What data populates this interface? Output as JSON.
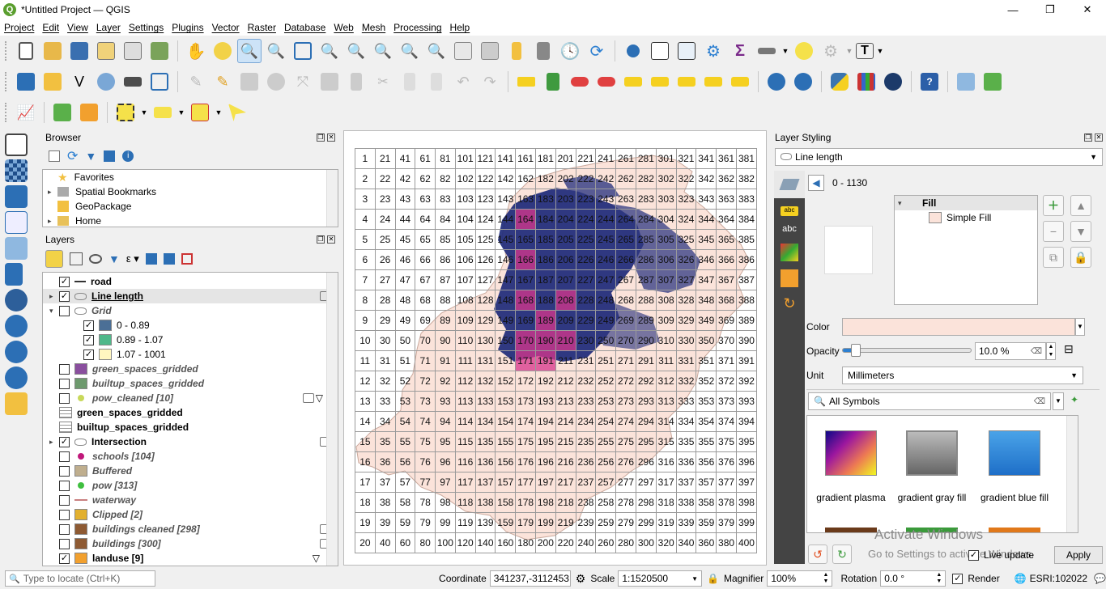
{
  "window": {
    "title": "*Untitled Project — QGIS",
    "min": "—",
    "max": "❐",
    "close": "✕"
  },
  "menu": [
    "Project",
    "Edit",
    "View",
    "Layer",
    "Settings",
    "Plugins",
    "Vector",
    "Raster",
    "Database",
    "Web",
    "Mesh",
    "Processing",
    "Help"
  ],
  "browser": {
    "title": "Browser",
    "items": [
      {
        "label": "Favorites",
        "icon": "star-icon"
      },
      {
        "label": "Spatial Bookmarks",
        "icon": "bookmark-icon"
      },
      {
        "label": "GeoPackage",
        "icon": "geopackage-icon"
      },
      {
        "label": "Home",
        "icon": "folder-icon"
      }
    ]
  },
  "layers": {
    "title": "Layers",
    "items": [
      {
        "label": "road",
        "style": "bold",
        "checked": true,
        "expander": "",
        "swatch": "line"
      },
      {
        "label": "Line length",
        "style": "bold-underline",
        "checked": true,
        "expander": "▸",
        "swatch": "poly-outline"
      },
      {
        "label": "Grid",
        "style": "italic",
        "checked": false,
        "expander": "▾",
        "swatch": "poly-outline"
      },
      {
        "label": "0 - 0.89",
        "style": "plain",
        "checked": true,
        "indent": 1,
        "color": "#4b6f96"
      },
      {
        "label": "0.89 - 1.07",
        "style": "plain",
        "checked": true,
        "indent": 1,
        "color": "#50b88a"
      },
      {
        "label": "1.07 - 1001",
        "style": "plain",
        "checked": true,
        "indent": 1,
        "color": "#fff6c0"
      },
      {
        "label": "green_spaces_gridded",
        "style": "italic",
        "checked": false,
        "color": "#8a4f9e"
      },
      {
        "label": "builtup_spaces_gridded",
        "style": "italic",
        "checked": false,
        "color": "#6e9a6e"
      },
      {
        "label": "pow_cleaned [10]",
        "style": "italic",
        "checked": false,
        "dot": "#c8d85a"
      },
      {
        "label": "green_spaces_gridded",
        "style": "bold",
        "checked": null,
        "table": true
      },
      {
        "label": "builtup_spaces_gridded",
        "style": "bold",
        "checked": null,
        "table": true
      },
      {
        "label": "Intersection",
        "style": "bold",
        "checked": true,
        "expander": "▸",
        "swatch": "poly-outline"
      },
      {
        "label": "schools [104]",
        "style": "italic",
        "checked": false,
        "dot": "#c0187a"
      },
      {
        "label": "Buffered",
        "style": "italic",
        "checked": false,
        "color": "#bfae8e"
      },
      {
        "label": "pow [313]",
        "style": "italic",
        "checked": false,
        "dot": "#3fbf3f"
      },
      {
        "label": "waterway",
        "style": "italic",
        "checked": false,
        "line": "#c98080"
      },
      {
        "label": "Clipped [2]",
        "style": "italic",
        "checked": false,
        "color": "#e2b02f"
      },
      {
        "label": "buildings cleaned [298]",
        "style": "italic",
        "checked": false,
        "color": "#8e5a33"
      },
      {
        "label": "buildings [300]",
        "style": "italic",
        "checked": false,
        "color": "#8e5a33"
      },
      {
        "label": "landuse [9]",
        "style": "bold",
        "checked": true,
        "color": "#f2a02e"
      }
    ]
  },
  "styling": {
    "title": "Layer Styling",
    "layer_combo": "Line length",
    "range": "0 - 1130",
    "tree_root": "Fill",
    "tree_child": "Simple Fill",
    "color_label": "Color",
    "opacity_label": "Opacity",
    "opacity_value": "10.0 %",
    "opacity_fraction": 0.1,
    "unit_label": "Unit",
    "unit_value": "Millimeters",
    "symbols_search": "All Symbols",
    "symbols": [
      {
        "label": "gradient plasma"
      },
      {
        "label": "gradient  gray fill"
      },
      {
        "label": "gradient blue fill"
      }
    ],
    "live_update": "Live update",
    "apply": "Apply",
    "watermark_1": "Activate Windows",
    "watermark_2": "Go to Settings to activate Windows."
  },
  "status": {
    "locate_placeholder": "Type to locate (Ctrl+K)",
    "coordinate_label": "Coordinate",
    "coordinate_value": "341237,-3112453",
    "scale_label": "Scale",
    "scale_value": "1:1520500",
    "magnifier_label": "Magnifier",
    "magnifier_value": "100%",
    "rotation_label": "Rotation",
    "rotation_value": "0.0 °",
    "render_label": "Render",
    "crs": "ESRI:102022"
  },
  "colors": {
    "accent": "#1e3a8a",
    "fill": "#fbe3da",
    "highlight": "#d9368c",
    "grid_line": "#9a9a9a"
  }
}
